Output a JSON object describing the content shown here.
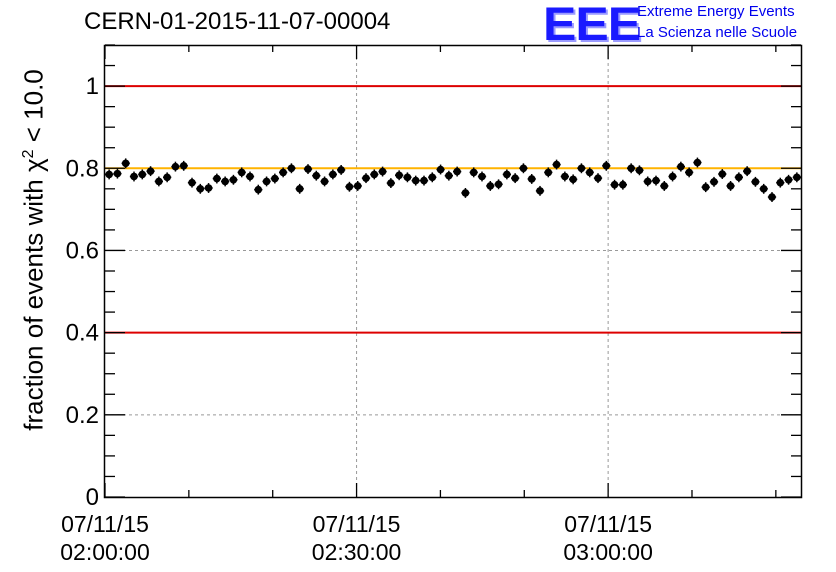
{
  "title": "CERN-01-2015-11-07-00004",
  "logo": {
    "text": "EEE",
    "line1": "Extreme Energy Events",
    "line2": "La Scienza nelle Scuole",
    "color": "#1a1aff"
  },
  "chart_data": {
    "type": "scatter",
    "title": "CERN-01-2015-11-07-00004",
    "xlabel": "",
    "ylabel_main": "fraction of events with",
    "ylabel_symbol": "χ",
    "ylabel_sup": "2",
    "ylabel_tail": " < 10.0",
    "ylim": [
      0,
      1.1
    ],
    "x_minutes_range": [
      0,
      83
    ],
    "yticks": [
      {
        "value": 0,
        "label": "0"
      },
      {
        "value": 0.2,
        "label": "0.2"
      },
      {
        "value": 0.4,
        "label": "0.4"
      },
      {
        "value": 0.6,
        "label": "0.6"
      },
      {
        "value": 0.8,
        "label": "0.8"
      },
      {
        "value": 1,
        "label": "1"
      }
    ],
    "xticks": [
      {
        "minute": 0,
        "date": "07/11/15",
        "time": "02:00:00"
      },
      {
        "minute": 30,
        "date": "07/11/15",
        "time": "02:30:00"
      },
      {
        "minute": 60,
        "date": "07/11/15",
        "time": "03:00:00"
      }
    ],
    "grid": true,
    "reference_lines": [
      {
        "value": 1.0,
        "color": "#dd0000"
      },
      {
        "value": 0.8,
        "color": "#ffb300"
      },
      {
        "value": 0.4,
        "color": "#dd0000"
      }
    ],
    "error": 0.012,
    "series": [
      {
        "values": [
          0.785,
          0.787,
          0.812,
          0.78,
          0.785,
          0.793,
          0.768,
          0.778,
          0.804,
          0.806,
          0.765,
          0.75,
          0.752,
          0.775,
          0.768,
          0.772,
          0.79,
          0.78,
          0.748,
          0.768,
          0.775,
          0.79,
          0.8,
          0.75,
          0.798,
          0.782,
          0.768,
          0.785,
          0.796,
          0.755,
          0.757,
          0.776,
          0.785,
          0.792,
          0.764,
          0.783,
          0.778,
          0.77,
          0.77,
          0.778,
          0.797,
          0.782,
          0.792,
          0.74,
          0.79,
          0.78,
          0.757,
          0.761,
          0.785,
          0.776,
          0.8,
          0.774,
          0.745,
          0.79,
          0.809,
          0.78,
          0.773,
          0.8,
          0.79,
          0.776,
          0.806,
          0.76,
          0.76,
          0.8,
          0.795,
          0.768,
          0.77,
          0.757,
          0.78,
          0.804,
          0.79,
          0.814,
          0.754,
          0.767,
          0.786,
          0.757,
          0.778,
          0.793,
          0.767,
          0.75,
          0.73,
          0.765,
          0.772,
          0.778
        ]
      }
    ]
  }
}
